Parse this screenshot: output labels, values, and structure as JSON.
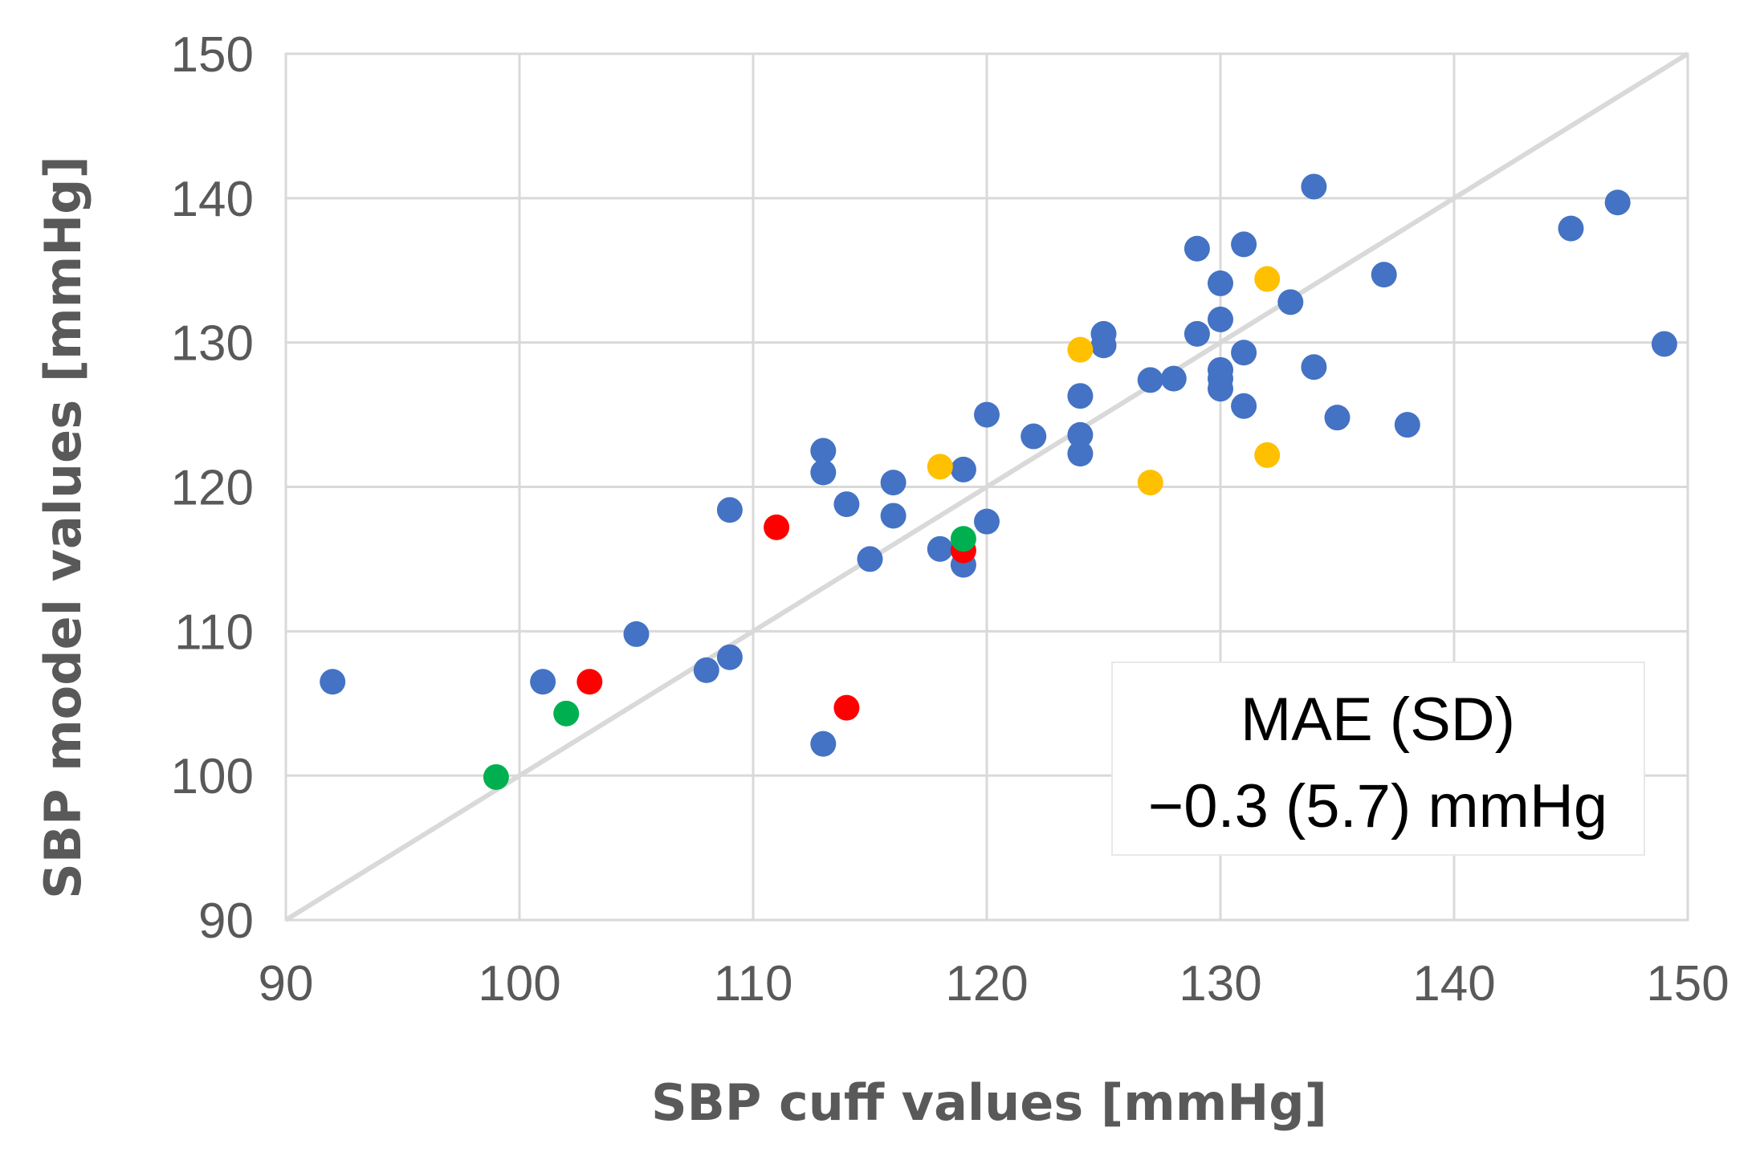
{
  "chart_data": {
    "type": "scatter",
    "title": "",
    "xlabel": "SBP cuff values [mmHg]",
    "ylabel": "SBP model values [mmHg]",
    "xlim": [
      90,
      150
    ],
    "ylim": [
      90,
      150
    ],
    "xticks": [
      "90",
      "100",
      "110",
      "120",
      "130",
      "140",
      "150"
    ],
    "yticks": [
      "90",
      "100",
      "110",
      "120",
      "130",
      "140",
      "150"
    ],
    "grid": true,
    "identity_line": {
      "from": [
        90,
        90
      ],
      "to": [
        150,
        150
      ],
      "color": "#d9d9d9"
    },
    "annotation": {
      "line1": "MAE (SD)",
      "line2": "−0.3 (5.7) mmHg",
      "placement": "bottom-right"
    },
    "series": [
      {
        "name": "blue",
        "color": "#4472c4",
        "points": [
          [
            92,
            106.5
          ],
          [
            101,
            106.5
          ],
          [
            105,
            109.8
          ],
          [
            108,
            107.3
          ],
          [
            109,
            108.2
          ],
          [
            109,
            118.4
          ],
          [
            113,
            102.2
          ],
          [
            113,
            121
          ],
          [
            113,
            122.5
          ],
          [
            114,
            118.8
          ],
          [
            115,
            115
          ],
          [
            116,
            118
          ],
          [
            116,
            120.3
          ],
          [
            118,
            115.7
          ],
          [
            119,
            114.6
          ],
          [
            119,
            121.2
          ],
          [
            120,
            117.6
          ],
          [
            120,
            125
          ],
          [
            122,
            123.5
          ],
          [
            124,
            122.3
          ],
          [
            124,
            123.6
          ],
          [
            124,
            126.3
          ],
          [
            125,
            129.8
          ],
          [
            125,
            130.6
          ],
          [
            127,
            127.4
          ],
          [
            128,
            127.5
          ],
          [
            129,
            130.6
          ],
          [
            129,
            136.5
          ],
          [
            130,
            126.8
          ],
          [
            130,
            127.5
          ],
          [
            130,
            128.1
          ],
          [
            130,
            131.6
          ],
          [
            130,
            134.1
          ],
          [
            131,
            125.6
          ],
          [
            131,
            129.3
          ],
          [
            131,
            136.8
          ],
          [
            133,
            132.8
          ],
          [
            134,
            128.3
          ],
          [
            134,
            140.8
          ],
          [
            135,
            124.8
          ],
          [
            137,
            134.7
          ],
          [
            138,
            124.3
          ],
          [
            145,
            137.9
          ],
          [
            147,
            139.7
          ],
          [
            149,
            129.9
          ]
        ]
      },
      {
        "name": "yellow",
        "color": "#ffc000",
        "points": [
          [
            118,
            121.4
          ],
          [
            124,
            129.5
          ],
          [
            127,
            120.3
          ],
          [
            132,
            122.2
          ],
          [
            132,
            134.4
          ]
        ]
      },
      {
        "name": "red",
        "color": "#ff0000",
        "points": [
          [
            103,
            106.5
          ],
          [
            111,
            117.2
          ],
          [
            114,
            104.7
          ],
          [
            119,
            115.6
          ]
        ]
      },
      {
        "name": "green",
        "color": "#00b050",
        "points": [
          [
            99,
            99.9
          ],
          [
            102,
            104.3
          ],
          [
            119,
            116.4
          ]
        ]
      }
    ]
  }
}
